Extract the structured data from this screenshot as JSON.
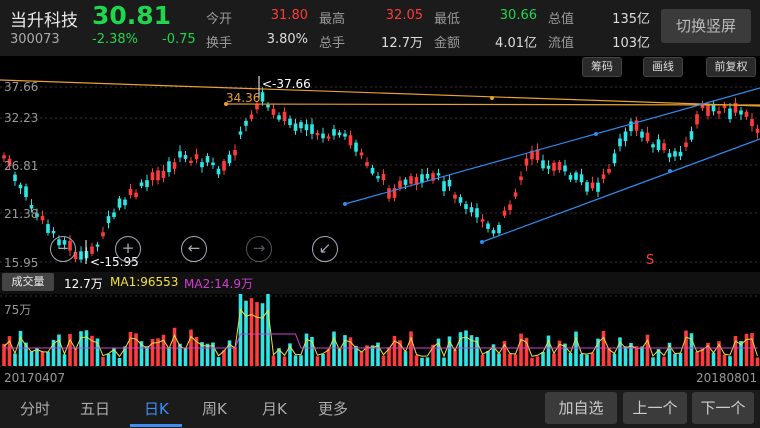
{
  "stock": {
    "name": "当升科技",
    "price": "30.81",
    "code": "300073",
    "change_pct": "-2.38%",
    "change": "-0.75"
  },
  "quote": [
    {
      "label": "今开",
      "value": "31.80"
    },
    {
      "label": "最高",
      "value": "32.05"
    },
    {
      "label": "最低",
      "value": "30.66"
    },
    {
      "label": "总值",
      "value": "135亿"
    },
    {
      "label": "换手",
      "value": "3.80%"
    },
    {
      "label": "总手",
      "value": "12.7万"
    },
    {
      "label": "金额",
      "value": "4.01亿"
    },
    {
      "label": "流值",
      "value": "103亿"
    }
  ],
  "switch_label": "切换竖屏",
  "tools": {
    "chips": "筹码",
    "draw": "画线",
    "adjust": "前复权"
  },
  "yaxis": [
    "37.66",
    "32.23",
    "26.81",
    "21.38",
    "15.95"
  ],
  "annotations": {
    "high": "<-37.66",
    "low": "<-15.95",
    "line_price": "34.36",
    "signal": "S"
  },
  "nav_icons": {
    "zoom_out": "−",
    "zoom_in": "+",
    "left": "←",
    "right": "→",
    "shrink": "↙"
  },
  "volume": {
    "button": "成交量",
    "current": "12.7万",
    "ma1": "MA1:96553",
    "ma2": "MA2:14.9万",
    "scale": "75万"
  },
  "dates": {
    "start": "20170407",
    "end": "20180801"
  },
  "tabs": [
    "分时",
    "五日",
    "日K",
    "周K",
    "月K",
    "更多"
  ],
  "buttons": {
    "watch": "加自选",
    "prev": "上一个",
    "next": "下一个"
  },
  "colors": {
    "up": "#ff3b3b",
    "down": "#1fd64e",
    "active": "#3d8df5"
  }
}
